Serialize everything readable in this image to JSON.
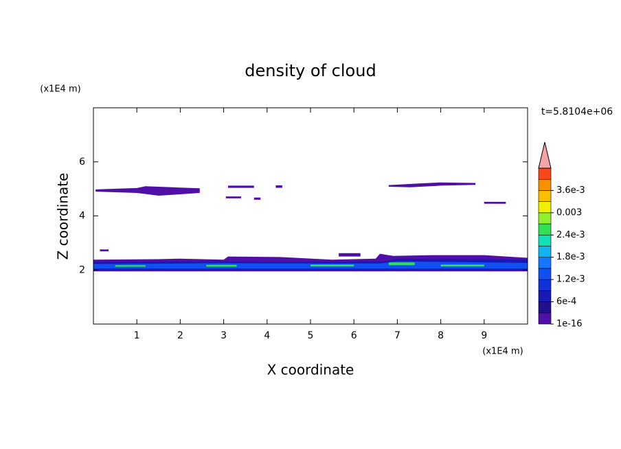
{
  "chart_data": {
    "type": "contour",
    "title": "density of cloud",
    "xlabel": "X coordinate",
    "ylabel": "Z coordinate",
    "xunit": "(x1E4 m)",
    "yunit": "(x1E4 m)",
    "time_label": "t=5.8104e+06",
    "xlim": [
      0,
      10
    ],
    "ylim": [
      0,
      8
    ],
    "xticks": [
      1,
      2,
      3,
      4,
      5,
      6,
      7,
      8,
      9
    ],
    "yticks": [
      2,
      4,
      6
    ],
    "colorbar": {
      "clim": [
        0,
        0.0042
      ],
      "ticks": [
        {
          "value": 1e-16,
          "label": "1e-16"
        },
        {
          "value": 0.0006,
          "label": "6e-4"
        },
        {
          "value": 0.0012,
          "label": "1.2e-3"
        },
        {
          "value": 0.0018,
          "label": "1.8e-3"
        },
        {
          "value": 0.0024,
          "label": "2.4e-3"
        },
        0.003,
        {
          "value": 0.0036,
          "label": "3.6e-3"
        }
      ],
      "colors": [
        "#5010a8",
        "#20108c",
        "#1818b4",
        "#1030d8",
        "#1050f0",
        "#1478ff",
        "#10b4f0",
        "#10e0b4",
        "#30e050",
        "#90f030",
        "#f0f000",
        "#f8c000",
        "#f89000",
        "#f84818"
      ],
      "extend_color": "#f4a4a4"
    },
    "regions": [
      {
        "level": 0,
        "x": [
          0.05,
          1.0,
          1.2,
          2.0,
          2.45,
          2.45,
          2.0,
          1.5,
          1.0,
          0.05
        ],
        "z": [
          4.98,
          5.03,
          5.1,
          5.05,
          5.02,
          4.85,
          4.8,
          4.75,
          4.85,
          4.9
        ]
      },
      {
        "level": 0,
        "x": [
          3.1,
          3.7,
          3.7,
          3.1
        ],
        "z": [
          5.12,
          5.12,
          5.04,
          5.04
        ]
      },
      {
        "level": 0,
        "x": [
          3.05,
          3.4,
          3.4,
          3.05
        ],
        "z": [
          4.72,
          4.72,
          4.65,
          4.65
        ]
      },
      {
        "level": 0,
        "x": [
          3.7,
          3.85,
          3.85,
          3.7
        ],
        "z": [
          4.68,
          4.68,
          4.6,
          4.6
        ]
      },
      {
        "level": 0,
        "x": [
          4.2,
          4.35,
          4.35,
          4.2
        ],
        "z": [
          5.13,
          5.13,
          5.04,
          5.04
        ]
      },
      {
        "level": 0,
        "x": [
          6.8,
          7.5,
          8.0,
          8.8,
          8.8,
          8.0,
          7.3,
          6.8
        ],
        "z": [
          5.14,
          5.2,
          5.24,
          5.22,
          5.15,
          5.12,
          5.06,
          5.08
        ]
      },
      {
        "level": 0,
        "x": [
          9.0,
          9.5,
          9.5,
          9.0
        ],
        "z": [
          4.52,
          4.52,
          4.45,
          4.45
        ]
      },
      {
        "level": 0,
        "x": [
          0.15,
          0.35,
          0.35,
          0.15
        ],
        "z": [
          2.76,
          2.76,
          2.69,
          2.69
        ]
      },
      {
        "level": 0,
        "x": [
          5.65,
          6.15,
          6.15,
          5.65
        ],
        "z": [
          2.62,
          2.62,
          2.5,
          2.5
        ]
      },
      {
        "level": 0,
        "x": [
          0,
          1.5,
          2.0,
          3.0,
          3.1,
          4.3,
          5.5,
          6.5,
          6.6,
          6.9,
          7.8,
          9.0,
          10,
          10,
          0
        ],
        "z": [
          2.38,
          2.4,
          2.42,
          2.38,
          2.5,
          2.48,
          2.38,
          2.42,
          2.6,
          2.52,
          2.55,
          2.55,
          2.45,
          1.95,
          1.95
        ]
      },
      {
        "level": 2,
        "x": [
          0,
          3.0,
          5.0,
          6.7,
          7.0,
          10,
          10,
          0
        ],
        "z": [
          2.3,
          2.32,
          2.3,
          2.32,
          2.42,
          2.38,
          2.0,
          2.0
        ]
      },
      {
        "level": 4,
        "x": [
          0,
          3.0,
          5.0,
          6.6,
          7.0,
          10,
          10,
          0
        ],
        "z": [
          2.22,
          2.25,
          2.24,
          2.24,
          2.32,
          2.26,
          2.05,
          2.05
        ]
      },
      {
        "level": 8,
        "x": [
          0.5,
          1.2,
          1.2,
          0.5
        ],
        "z": [
          2.18,
          2.18,
          2.12,
          2.12
        ]
      },
      {
        "level": 8,
        "x": [
          2.6,
          3.3,
          3.3,
          2.6
        ],
        "z": [
          2.19,
          2.19,
          2.12,
          2.12
        ]
      },
      {
        "level": 8,
        "x": [
          5.0,
          6.0,
          6.0,
          5.0
        ],
        "z": [
          2.2,
          2.2,
          2.13,
          2.13
        ]
      },
      {
        "level": 8,
        "x": [
          6.8,
          7.4,
          7.4,
          6.8
        ],
        "z": [
          2.28,
          2.28,
          2.18,
          2.18
        ]
      },
      {
        "level": 8,
        "x": [
          8.0,
          9.0,
          9.0,
          8.0
        ],
        "z": [
          2.2,
          2.2,
          2.13,
          2.13
        ]
      }
    ]
  }
}
